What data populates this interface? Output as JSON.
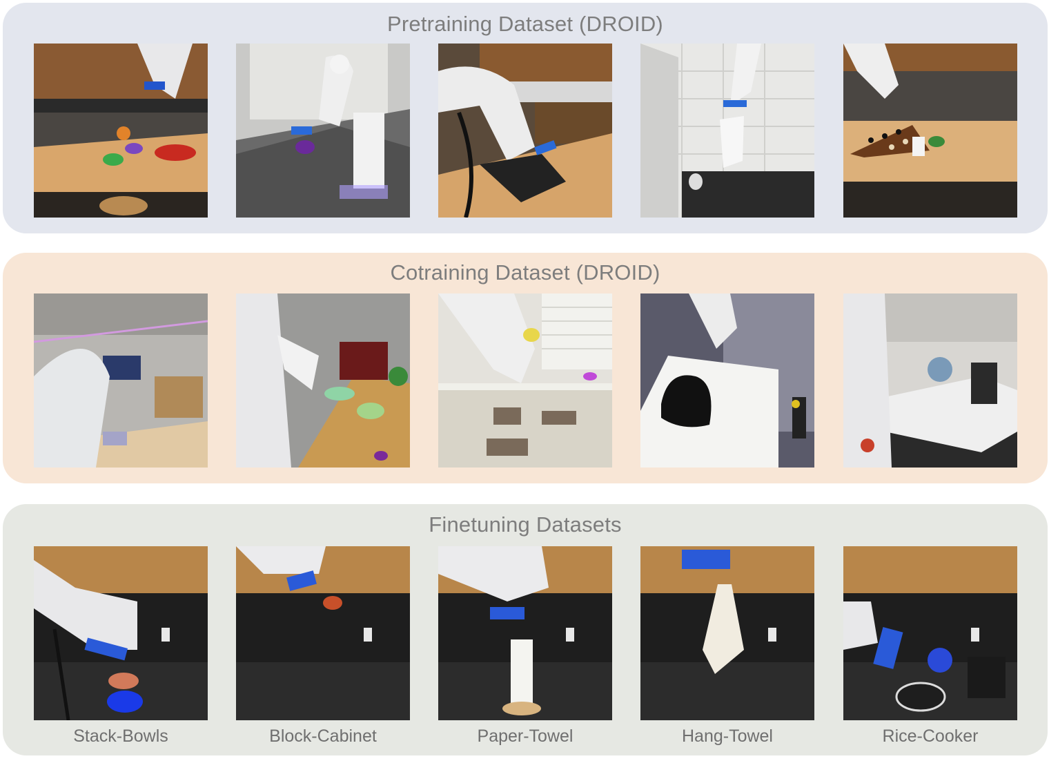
{
  "sections": {
    "pretraining": {
      "title": "Pretraining Dataset (DROID)",
      "images": [
        {
          "icon": "kitchen-robot-bowls-photo"
        },
        {
          "icon": "lab-robot-counter-photo"
        },
        {
          "icon": "robot-cloth-counter-photo"
        },
        {
          "icon": "robot-cloth-tile-wall-photo"
        },
        {
          "icon": "robot-chessboard-photo"
        }
      ]
    },
    "cotraining": {
      "title": "Cotraining Dataset (DROID)",
      "images": [
        {
          "icon": "robot-warehouse-table-photo"
        },
        {
          "icon": "robot-microwave-table-photo"
        },
        {
          "icon": "robot-window-shelf-photo"
        },
        {
          "icon": "robot-bag-white-table-photo"
        },
        {
          "icon": "robot-kitchen-coffee-maker-photo"
        }
      ]
    },
    "finetuning": {
      "title": "Finetuning Datasets",
      "images": [
        {
          "icon": "robot-stack-bowls-photo",
          "caption": "Stack-Bowls"
        },
        {
          "icon": "robot-block-cabinet-photo",
          "caption": "Block-Cabinet"
        },
        {
          "icon": "robot-paper-towel-photo",
          "caption": "Paper-Towel"
        },
        {
          "icon": "robot-hang-towel-photo",
          "caption": "Hang-Towel"
        },
        {
          "icon": "robot-rice-cooker-photo",
          "caption": "Rice-Cooker"
        }
      ]
    }
  },
  "colors": {
    "pretraining_panel": "#e3e6ee",
    "cotraining_panel": "#f8e6d6",
    "finetuning_panel": "#e6e8e3",
    "title_text": "#7d7d7d",
    "caption_text": "#6f6f6f"
  }
}
